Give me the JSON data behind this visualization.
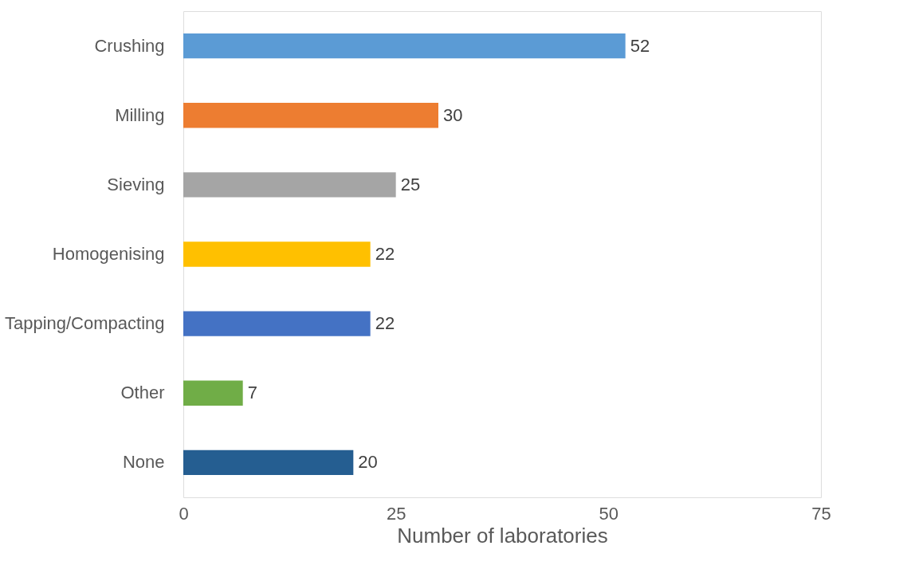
{
  "chart_data": {
    "type": "bar",
    "orientation": "horizontal",
    "xlabel": "Number of laboratories",
    "categories": [
      "Crushing",
      "Milling",
      "Sieving",
      "Homogenising",
      "Tapping/Compacting",
      "Other",
      "None"
    ],
    "values": [
      52,
      30,
      25,
      22,
      22,
      7,
      20
    ],
    "colors": [
      "#5b9bd5",
      "#ed7d31",
      "#a5a5a5",
      "#ffc000",
      "#4472c4",
      "#70ad47",
      "#255e91"
    ],
    "xlim": [
      0,
      75
    ],
    "xticks": [
      0,
      25,
      50,
      75
    ],
    "grid": false,
    "data_labels": true
  }
}
